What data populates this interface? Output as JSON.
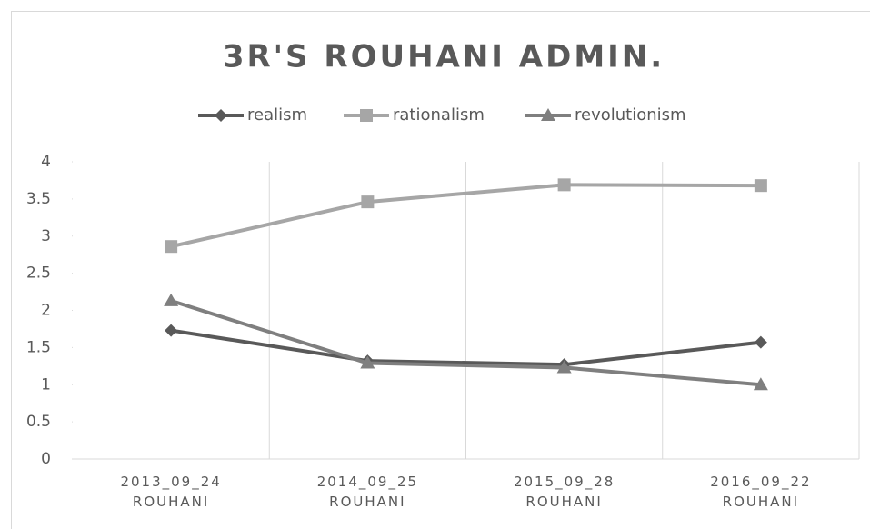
{
  "chart_data": {
    "type": "line",
    "title": "3R'S ROUHANI ADMIN.",
    "categories": [
      "2013_09_24 ROUHANI",
      "2014_09_25 ROUHANI",
      "2015_09_28 ROUHANI",
      "2016_09_22 ROUHANI"
    ],
    "series": [
      {
        "name": "realism",
        "color": "#595959",
        "marker": "diamond",
        "values": [
          1.73,
          1.32,
          1.27,
          1.57
        ]
      },
      {
        "name": "rationalism",
        "color": "#a6a6a6",
        "marker": "square",
        "values": [
          2.86,
          3.46,
          3.69,
          3.68
        ]
      },
      {
        "name": "revolutionism",
        "color": "#7f7f7f",
        "marker": "triangle",
        "values": [
          2.13,
          1.29,
          1.23,
          1.0
        ]
      }
    ],
    "ylim": [
      0,
      4
    ],
    "yticks": [
      0,
      0.5,
      1,
      1.5,
      2,
      2.5,
      3,
      3.5,
      4
    ],
    "legend": "top",
    "grid": "vertical"
  }
}
